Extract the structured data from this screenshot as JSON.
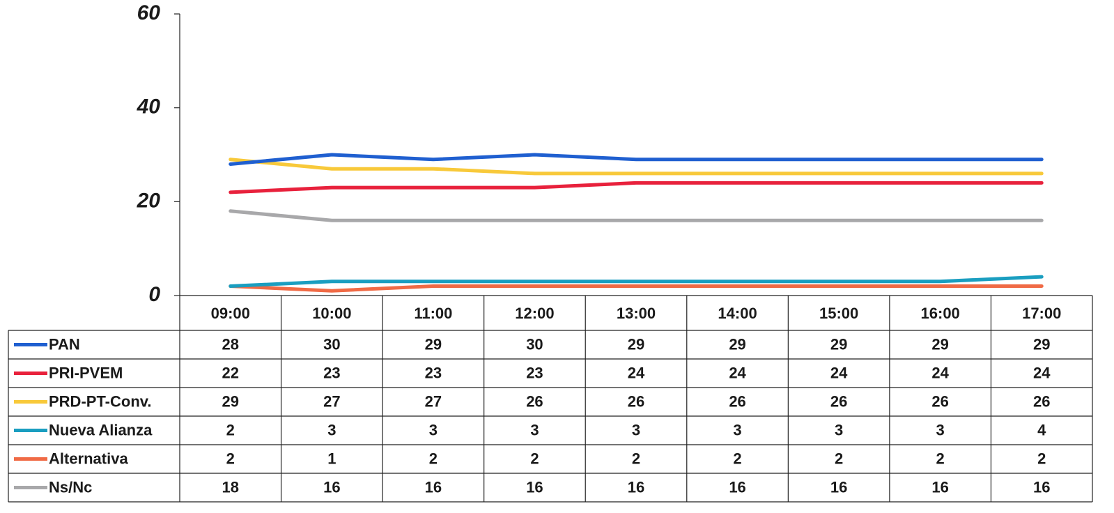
{
  "chart_data": {
    "type": "line",
    "categories": [
      "09:00",
      "10:00",
      "11:00",
      "12:00",
      "13:00",
      "14:00",
      "15:00",
      "16:00",
      "17:00"
    ],
    "series": [
      {
        "name": "PAN",
        "color": "#1f5fd0",
        "values": [
          28,
          30,
          29,
          30,
          29,
          29,
          29,
          29,
          29
        ]
      },
      {
        "name": "PRI-PVEM",
        "color": "#e8213c",
        "values": [
          22,
          23,
          23,
          23,
          24,
          24,
          24,
          24,
          24
        ]
      },
      {
        "name": "PRD-PT-Conv.",
        "color": "#f8c93a",
        "values": [
          29,
          27,
          27,
          26,
          26,
          26,
          26,
          26,
          26
        ]
      },
      {
        "name": "Nueva Alianza",
        "color": "#1a9ec0",
        "values": [
          2,
          3,
          3,
          3,
          3,
          3,
          3,
          3,
          4
        ]
      },
      {
        "name": "Alternativa",
        "color": "#f06a45",
        "values": [
          2,
          1,
          2,
          2,
          2,
          2,
          2,
          2,
          2
        ]
      },
      {
        "name": "Ns/Nc",
        "color": "#a8a8aa",
        "values": [
          18,
          16,
          16,
          16,
          16,
          16,
          16,
          16,
          16
        ]
      }
    ],
    "ylim": [
      0,
      60
    ],
    "yticks": [
      0,
      20,
      40,
      60
    ],
    "grid": false,
    "data_table": true
  }
}
